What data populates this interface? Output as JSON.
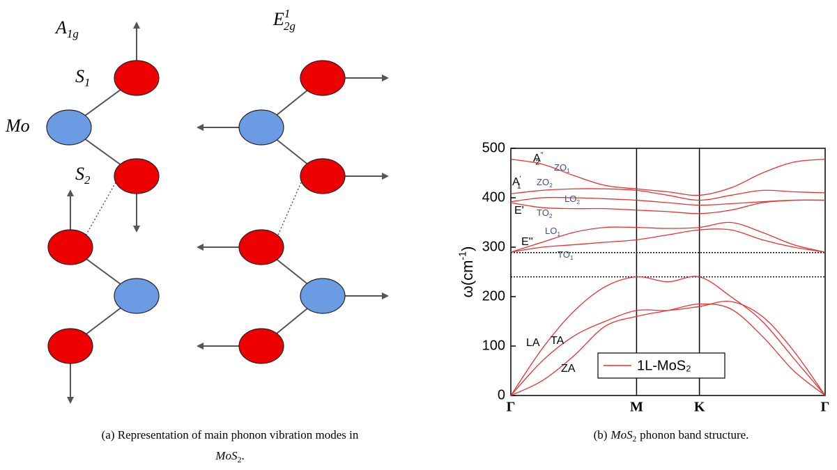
{
  "panel_a": {
    "modes": [
      {
        "text": "A",
        "sub": "1g"
      },
      {
        "text": "E",
        "sup": "1",
        "sub": "2g"
      }
    ],
    "atoms": [
      {
        "text": "S",
        "sub": "1"
      },
      {
        "text": "Mo"
      },
      {
        "text": "S",
        "sub": "2"
      }
    ],
    "caption": {
      "text": "(a) Representation of main phonon vibration modes in",
      "formula": "MoS",
      "sub": "2",
      "tail": "."
    }
  },
  "panel_b": {
    "caption": {
      "text": "(b)",
      "formula": "MoS",
      "sub": "2",
      "tail": "phonon band structure."
    }
  },
  "chart_data": {
    "type": "line",
    "ylabel": {
      "text": "ω(cm",
      "sup": "-1",
      "tail": ")"
    },
    "x": [
      0,
      0.25,
      0.5,
      0.75,
      1,
      1.25,
      1.5,
      1.75,
      2,
      2.25,
      2.5
    ],
    "xlim": [
      0,
      2.5
    ],
    "xticks": [
      {
        "value": 0,
        "label": "Γ"
      },
      {
        "value": 1,
        "label": "M"
      },
      {
        "value": 1.5,
        "label": "K"
      },
      {
        "value": 2.5,
        "label": "Γ"
      }
    ],
    "ylim": [
      0,
      500
    ],
    "yticks": [
      0,
      100,
      200,
      300,
      400,
      500
    ],
    "hlines": [
      289,
      240
    ],
    "legend": "bottom-center",
    "series": [
      {
        "name": "1L-MoS₂",
        "color": "#e8312f",
        "values": [
          [
            478,
            468,
            445,
            425,
            418,
            412,
            405,
            420,
            450,
            472,
            478
          ],
          [
            408,
            415,
            418,
            418,
            415,
            405,
            395,
            405,
            415,
            412,
            410
          ],
          [
            392,
            400,
            400,
            398,
            395,
            390,
            385,
            388,
            392,
            395,
            395
          ],
          [
            390,
            380,
            378,
            378,
            375,
            372,
            368,
            375,
            390,
            395,
            395
          ],
          [
            290,
            310,
            330,
            340,
            340,
            338,
            340,
            350,
            330,
            305,
            290
          ],
          [
            290,
            300,
            305,
            310,
            315,
            325,
            335,
            335,
            315,
            300,
            290
          ],
          [
            0,
            95,
            170,
            220,
            240,
            230,
            240,
            200,
            150,
            75,
            0
          ],
          [
            0,
            70,
            120,
            150,
            172,
            172,
            180,
            190,
            160,
            90,
            0
          ],
          [
            0,
            30,
            80,
            140,
            160,
            172,
            185,
            175,
            120,
            50,
            0
          ]
        ]
      }
    ],
    "annotations": [
      {
        "text": "A",
        "sup": "''",
        "sub": "2",
        "color": "#000000"
      },
      {
        "text": "ZO",
        "sub": "1",
        "color": "#3b4fa0"
      },
      {
        "text": "A",
        "sup": "'",
        "sub": "1",
        "color": "#000000"
      },
      {
        "text": "ZO",
        "sub": "2",
        "color": "#3b4fa0"
      },
      {
        "text": "LO",
        "sub": "2",
        "color": "#3b4fa0"
      },
      {
        "text": "E'",
        "color": "#000000"
      },
      {
        "text": "TO",
        "sub": "2",
        "color": "#3b4fa0"
      },
      {
        "text": "LO",
        "sub": "1",
        "color": "#3b4fa0"
      },
      {
        "text": "E''",
        "color": "#000000"
      },
      {
        "text": "TO",
        "sub": "1",
        "color": "#3b4fa0"
      },
      {
        "text": "LA",
        "color": "#000000"
      },
      {
        "text": "TA",
        "color": "#000000"
      },
      {
        "text": "ZA",
        "color": "#000000"
      }
    ]
  }
}
